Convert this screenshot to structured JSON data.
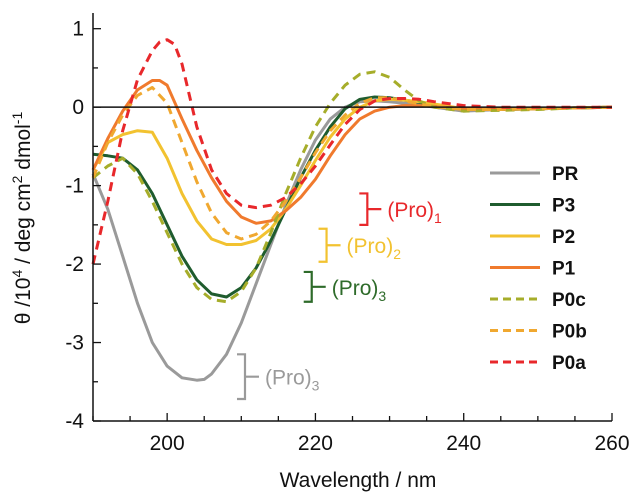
{
  "chart_data": {
    "type": "line",
    "title": "",
    "xlabel": "Wavelength / nm",
    "ylabel_parts": {
      "theta": "θ /10",
      "exp4": "4",
      "unit1": " / deg cm",
      "exp2": "2",
      "unit2": " dmol",
      "expneg1": "-1"
    },
    "xlim": [
      190,
      260
    ],
    "ylim": [
      -4,
      1.2
    ],
    "x_ticks": [
      200,
      220,
      240,
      260
    ],
    "x_tick_labels": [
      "200",
      "220",
      "240",
      "260"
    ],
    "y_ticks": [
      1,
      0,
      -1,
      -2,
      -3,
      -4
    ],
    "y_tick_labels": [
      "1",
      "0",
      "-1",
      "-2",
      "-3",
      "-4"
    ],
    "legend_position": "right",
    "zero_line": true,
    "series": [
      {
        "name": "PR",
        "color": "#9a9a9a",
        "dash": "solid",
        "x": [
          190,
          192,
          194,
          196,
          198,
          200,
          202,
          204,
          205,
          206,
          208,
          210,
          212,
          214,
          216,
          218,
          220,
          222,
          224,
          226,
          228,
          230,
          232,
          234,
          236,
          240,
          245,
          250,
          255,
          260
        ],
        "y": [
          -0.85,
          -1.3,
          -1.9,
          -2.5,
          -3.0,
          -3.3,
          -3.45,
          -3.48,
          -3.47,
          -3.4,
          -3.15,
          -2.75,
          -2.25,
          -1.75,
          -1.25,
          -0.8,
          -0.42,
          -0.15,
          0.0,
          0.07,
          0.08,
          0.07,
          0.05,
          0.03,
          0.0,
          -0.05,
          -0.03,
          -0.02,
          -0.01,
          0.0
        ]
      },
      {
        "name": "P3",
        "color": "#1f5c2e",
        "dash": "solid",
        "x": [
          190,
          192,
          194,
          196,
          198,
          200,
          202,
          204,
          206,
          208,
          210,
          212,
          214,
          216,
          218,
          220,
          222,
          224,
          226,
          228,
          230,
          232,
          234,
          236,
          240,
          245,
          250,
          255,
          260
        ],
        "y": [
          -0.6,
          -0.62,
          -0.65,
          -0.8,
          -1.1,
          -1.5,
          -1.9,
          -2.2,
          -2.38,
          -2.42,
          -2.3,
          -2.05,
          -1.7,
          -1.3,
          -0.9,
          -0.55,
          -0.25,
          -0.02,
          0.1,
          0.13,
          0.12,
          0.09,
          0.06,
          0.03,
          -0.02,
          -0.03,
          -0.02,
          -0.01,
          0.0
        ]
      },
      {
        "name": "P2",
        "color": "#f2c230",
        "dash": "solid",
        "x": [
          190,
          192,
          194,
          196,
          198,
          200,
          202,
          204,
          206,
          208,
          210,
          212,
          214,
          216,
          218,
          220,
          222,
          224,
          226,
          228,
          230,
          232,
          234,
          236,
          240,
          245,
          250,
          255,
          260
        ],
        "y": [
          -0.8,
          -0.45,
          -0.35,
          -0.3,
          -0.32,
          -0.65,
          -1.1,
          -1.45,
          -1.68,
          -1.75,
          -1.75,
          -1.7,
          -1.55,
          -1.3,
          -1.0,
          -0.68,
          -0.38,
          -0.15,
          0.0,
          0.08,
          0.1,
          0.09,
          0.07,
          0.04,
          -0.02,
          -0.02,
          -0.02,
          -0.01,
          0.0
        ]
      },
      {
        "name": "P1",
        "color": "#f07a2d",
        "dash": "solid",
        "x": [
          190,
          192,
          194,
          196,
          198,
          199,
          200,
          202,
          204,
          206,
          208,
          210,
          212,
          214,
          216,
          218,
          220,
          222,
          224,
          226,
          228,
          230,
          232,
          234,
          236,
          240,
          245,
          250,
          255,
          260
        ],
        "y": [
          -0.8,
          -0.4,
          -0.05,
          0.22,
          0.34,
          0.34,
          0.28,
          -0.15,
          -0.55,
          -0.9,
          -1.2,
          -1.4,
          -1.48,
          -1.45,
          -1.32,
          -1.15,
          -0.92,
          -0.62,
          -0.35,
          -0.15,
          -0.05,
          0.0,
          0.02,
          0.02,
          0.01,
          -0.02,
          -0.02,
          -0.02,
          -0.01,
          0.0
        ]
      },
      {
        "name": "P0c",
        "color": "#a6ad2a",
        "dash": "dashed",
        "x": [
          190,
          192,
          194,
          196,
          198,
          200,
          202,
          204,
          206,
          208,
          210,
          212,
          214,
          216,
          218,
          220,
          222,
          224,
          226,
          228,
          230,
          232,
          234,
          236,
          240,
          245,
          250,
          255,
          260
        ],
        "y": [
          -0.9,
          -0.75,
          -0.65,
          -0.85,
          -1.2,
          -1.6,
          -2.0,
          -2.3,
          -2.45,
          -2.48,
          -2.35,
          -2.05,
          -1.6,
          -1.1,
          -0.65,
          -0.25,
          0.05,
          0.28,
          0.42,
          0.45,
          0.38,
          0.22,
          0.08,
          0.0,
          -0.05,
          -0.04,
          -0.03,
          -0.01,
          0.0
        ]
      },
      {
        "name": "P0b",
        "color": "#f0a830",
        "dash": "dashed",
        "x": [
          190,
          192,
          194,
          196,
          198,
          200,
          202,
          204,
          206,
          208,
          210,
          212,
          214,
          216,
          218,
          220,
          222,
          224,
          226,
          228,
          230,
          232,
          234,
          236,
          240,
          245,
          250,
          255,
          260
        ],
        "y": [
          -0.9,
          -0.45,
          -0.1,
          0.15,
          0.25,
          0.05,
          -0.45,
          -0.95,
          -1.35,
          -1.6,
          -1.68,
          -1.62,
          -1.45,
          -1.2,
          -0.9,
          -0.58,
          -0.3,
          -0.1,
          0.05,
          0.12,
          0.12,
          0.08,
          0.04,
          0.01,
          -0.03,
          -0.03,
          -0.02,
          -0.01,
          0.0
        ]
      },
      {
        "name": "P0a",
        "color": "#e8282b",
        "dash": "dashed",
        "x": [
          190,
          192,
          194,
          196,
          198,
          199,
          200,
          201,
          202,
          204,
          206,
          208,
          210,
          212,
          214,
          216,
          218,
          220,
          222,
          224,
          226,
          228,
          230,
          232,
          234,
          236,
          240,
          245,
          250,
          255,
          260
        ],
        "y": [
          -2.0,
          -1.2,
          -0.3,
          0.35,
          0.72,
          0.83,
          0.86,
          0.8,
          0.55,
          -0.25,
          -0.8,
          -1.1,
          -1.25,
          -1.28,
          -1.25,
          -1.15,
          -0.98,
          -0.75,
          -0.48,
          -0.22,
          -0.03,
          0.08,
          0.11,
          0.11,
          0.1,
          0.07,
          0.02,
          0.0,
          0.0,
          0.0,
          0.0
        ]
      }
    ],
    "annotations": [
      {
        "main": "(Pro)",
        "sub": "1",
        "color": "#e8282b",
        "bracket_x": 227,
        "y_top": -1.1,
        "y_bottom": -1.5
      },
      {
        "main": "(Pro)",
        "sub": "2",
        "color": "#f2c230",
        "bracket_x": 221.5,
        "y_top": -1.55,
        "y_bottom": -1.97
      },
      {
        "main": "(Pro)",
        "sub": "3",
        "color": "#2e6b2a",
        "bracket_x": 219.5,
        "y_top": -2.1,
        "y_bottom": -2.48
      },
      {
        "main": "(Pro)",
        "sub": "3",
        "color": "#9a9a9a",
        "bracket_x": 210.5,
        "y_top": -3.15,
        "y_bottom": -3.72
      }
    ]
  }
}
